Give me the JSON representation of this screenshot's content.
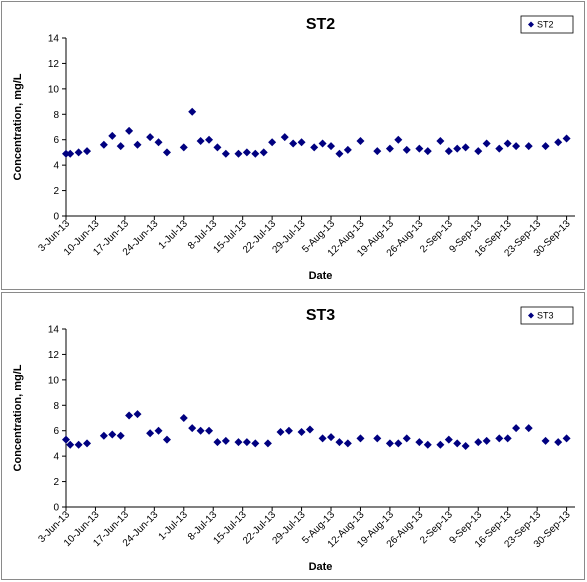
{
  "chart_data": [
    {
      "type": "scatter",
      "title": "ST2",
      "xlabel": "Date",
      "ylabel": "Concentration, mg/L",
      "ylim": [
        0,
        14
      ],
      "yticks": [
        "0",
        "2",
        "4",
        "6",
        "8",
        "10",
        "12",
        "14"
      ],
      "xlim": [
        "2013-06-03",
        "2013-10-02"
      ],
      "xticks": [
        "3-Jun-13",
        "10-Jun-13",
        "17-Jun-13",
        "24-Jun-13",
        "1-Jul-13",
        "8-Jul-13",
        "15-Jul-13",
        "22-Jul-13",
        "29-Jul-13",
        "5-Aug-13",
        "12-Aug-13",
        "19-Aug-13",
        "26-Aug-13",
        "2-Sep-13",
        "9-Sep-13",
        "16-Sep-13",
        "23-Sep-13",
        "30-Sep-13"
      ],
      "grid": false,
      "legend": "top-right",
      "series": [
        {
          "name": "ST2",
          "color": "#000080",
          "marker": "diamond",
          "x": [
            "2013-06-03",
            "2013-06-04",
            "2013-06-06",
            "2013-06-08",
            "2013-06-12",
            "2013-06-14",
            "2013-06-16",
            "2013-06-18",
            "2013-06-20",
            "2013-06-23",
            "2013-06-25",
            "2013-06-27",
            "2013-07-01",
            "2013-07-03",
            "2013-07-05",
            "2013-07-07",
            "2013-07-09",
            "2013-07-11",
            "2013-07-14",
            "2013-07-16",
            "2013-07-18",
            "2013-07-20",
            "2013-07-22",
            "2013-07-25",
            "2013-07-27",
            "2013-07-29",
            "2013-08-01",
            "2013-08-03",
            "2013-08-05",
            "2013-08-07",
            "2013-08-09",
            "2013-08-12",
            "2013-08-16",
            "2013-08-19",
            "2013-08-21",
            "2013-08-23",
            "2013-08-26",
            "2013-08-28",
            "2013-08-31",
            "2013-09-02",
            "2013-09-04",
            "2013-09-06",
            "2013-09-09",
            "2013-09-11",
            "2013-09-14",
            "2013-09-16",
            "2013-09-18",
            "2013-09-21",
            "2013-09-25",
            "2013-09-28",
            "2013-09-30"
          ],
          "y": [
            4.9,
            4.9,
            5.0,
            5.1,
            5.6,
            6.3,
            5.5,
            6.7,
            5.6,
            6.2,
            5.8,
            5.0,
            5.4,
            8.2,
            5.9,
            6.0,
            5.4,
            4.9,
            4.9,
            5.0,
            4.9,
            5.0,
            5.8,
            6.2,
            5.7,
            5.8,
            5.4,
            5.7,
            5.5,
            4.9,
            5.2,
            5.9,
            5.1,
            5.3,
            6.0,
            5.2,
            5.3,
            5.1,
            5.9,
            5.1,
            5.3,
            5.4,
            5.1,
            5.7,
            5.3,
            5.7,
            5.5,
            5.5,
            5.5,
            5.8,
            6.1
          ]
        }
      ]
    },
    {
      "type": "scatter",
      "title": "ST3",
      "xlabel": "Date",
      "ylabel": "Concentration, mg/L",
      "ylim": [
        0,
        14
      ],
      "yticks": [
        "0",
        "2",
        "4",
        "6",
        "8",
        "10",
        "12",
        "14"
      ],
      "xlim": [
        "2013-06-03",
        "2013-10-02"
      ],
      "xticks": [
        "3-Jun-13",
        "10-Jun-13",
        "17-Jun-13",
        "24-Jun-13",
        "1-Jul-13",
        "8-Jul-13",
        "15-Jul-13",
        "22-Jul-13",
        "29-Jul-13",
        "5-Aug-13",
        "12-Aug-13",
        "19-Aug-13",
        "26-Aug-13",
        "2-Sep-13",
        "9-Sep-13",
        "16-Sep-13",
        "23-Sep-13",
        "30-Sep-13"
      ],
      "grid": false,
      "legend": "top-right",
      "series": [
        {
          "name": "ST3",
          "color": "#000080",
          "marker": "diamond",
          "x": [
            "2013-06-03",
            "2013-06-04",
            "2013-06-06",
            "2013-06-08",
            "2013-06-12",
            "2013-06-14",
            "2013-06-16",
            "2013-06-18",
            "2013-06-20",
            "2013-06-23",
            "2013-06-25",
            "2013-06-27",
            "2013-07-01",
            "2013-07-03",
            "2013-07-05",
            "2013-07-07",
            "2013-07-09",
            "2013-07-11",
            "2013-07-14",
            "2013-07-16",
            "2013-07-18",
            "2013-07-21",
            "2013-07-24",
            "2013-07-26",
            "2013-07-29",
            "2013-07-31",
            "2013-08-03",
            "2013-08-05",
            "2013-08-07",
            "2013-08-09",
            "2013-08-12",
            "2013-08-16",
            "2013-08-19",
            "2013-08-21",
            "2013-08-23",
            "2013-08-26",
            "2013-08-28",
            "2013-08-31",
            "2013-09-02",
            "2013-09-04",
            "2013-09-06",
            "2013-09-09",
            "2013-09-11",
            "2013-09-14",
            "2013-09-16",
            "2013-09-18",
            "2013-09-21",
            "2013-09-25",
            "2013-09-28",
            "2013-09-30"
          ],
          "y": [
            5.3,
            4.9,
            4.9,
            5.0,
            5.6,
            5.7,
            5.6,
            7.2,
            7.3,
            5.8,
            6.0,
            5.3,
            7.0,
            6.2,
            6.0,
            6.0,
            5.1,
            5.2,
            5.1,
            5.1,
            5.0,
            5.0,
            5.9,
            6.0,
            5.9,
            6.1,
            5.4,
            5.5,
            5.1,
            5.0,
            5.4,
            5.4,
            5.0,
            5.0,
            5.4,
            5.1,
            4.9,
            4.9,
            5.3,
            5.0,
            4.8,
            5.1,
            5.2,
            5.4,
            5.4,
            6.2,
            6.2,
            5.2,
            5.1,
            5.4
          ]
        }
      ]
    }
  ]
}
